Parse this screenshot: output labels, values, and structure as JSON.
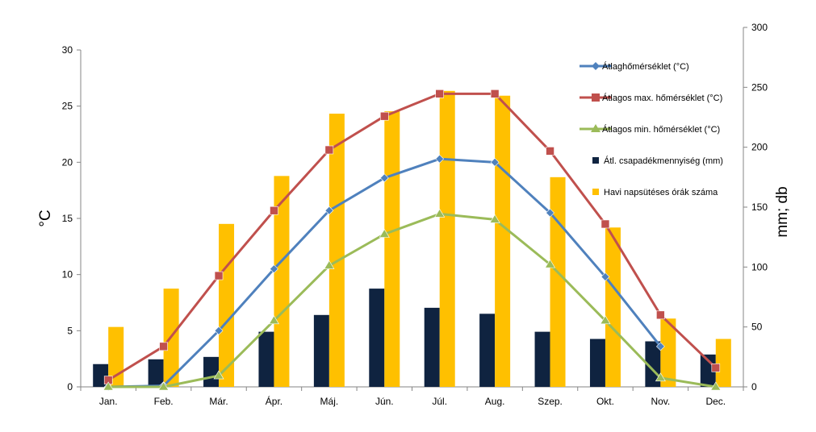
{
  "chart_data": {
    "type": "bar+line",
    "categories": [
      "Jan.",
      "Feb.",
      "Már.",
      "Ápr.",
      "Máj.",
      "Jún.",
      "Júl.",
      "Aug.",
      "Szep.",
      "Okt.",
      "Nov.",
      "Dec."
    ],
    "ylabel_left": "°C",
    "ylabel_right": "mm; db",
    "ylim_left": [
      0,
      30
    ],
    "yticks_left": [
      0,
      5,
      10,
      15,
      20,
      25,
      30
    ],
    "ylim_right": [
      0,
      300
    ],
    "yticks_right": [
      0,
      50,
      100,
      150,
      200,
      250,
      300
    ],
    "grid": false,
    "legend_position": "right",
    "bar_series": [
      {
        "name": "Átl. csapadékmennyiség (mm)",
        "axis": "right",
        "color": "#0f2340",
        "values": [
          19,
          23,
          25,
          46,
          60,
          82,
          66,
          61,
          46,
          40,
          38,
          27
        ]
      },
      {
        "name": "Havi napsütéses órák száma",
        "axis": "right",
        "color": "#ffc000",
        "values": [
          50,
          82,
          136,
          176,
          228,
          230,
          247,
          243,
          175,
          133,
          57,
          40
        ]
      }
    ],
    "line_series": [
      {
        "name": "Átlaghőmérséklet (°C)",
        "axis": "left",
        "color": "#4f81bd",
        "marker": "diamond",
        "values": [
          0.0,
          0.1,
          5.0,
          10.5,
          15.7,
          18.6,
          20.3,
          20.0,
          15.5,
          9.8,
          3.6,
          null
        ]
      },
      {
        "name": "Átlagos max. hőmérséklet (°C)",
        "axis": "left",
        "color": "#c0504d",
        "marker": "square",
        "values": [
          0.6,
          3.6,
          9.9,
          15.7,
          21.1,
          24.1,
          26.1,
          26.1,
          21.0,
          14.5,
          6.4,
          1.7
        ]
      },
      {
        "name": "Átlagos min. hőmérséklet (°C)",
        "axis": "left",
        "color": "#9bbb59",
        "marker": "triangle",
        "values": [
          0.0,
          0.0,
          1.0,
          5.9,
          10.8,
          13.6,
          15.4,
          14.9,
          10.9,
          5.9,
          0.8,
          0.0
        ]
      }
    ],
    "legend": [
      "Átlaghőmérséklet (°C)",
      "Átlagos max. hőmérséklet (°C)",
      "Átlagos min. hőmérséklet (°C)",
      "Átl. csapadékmennyiség (mm)",
      "Havi napsütéses órák száma"
    ]
  }
}
